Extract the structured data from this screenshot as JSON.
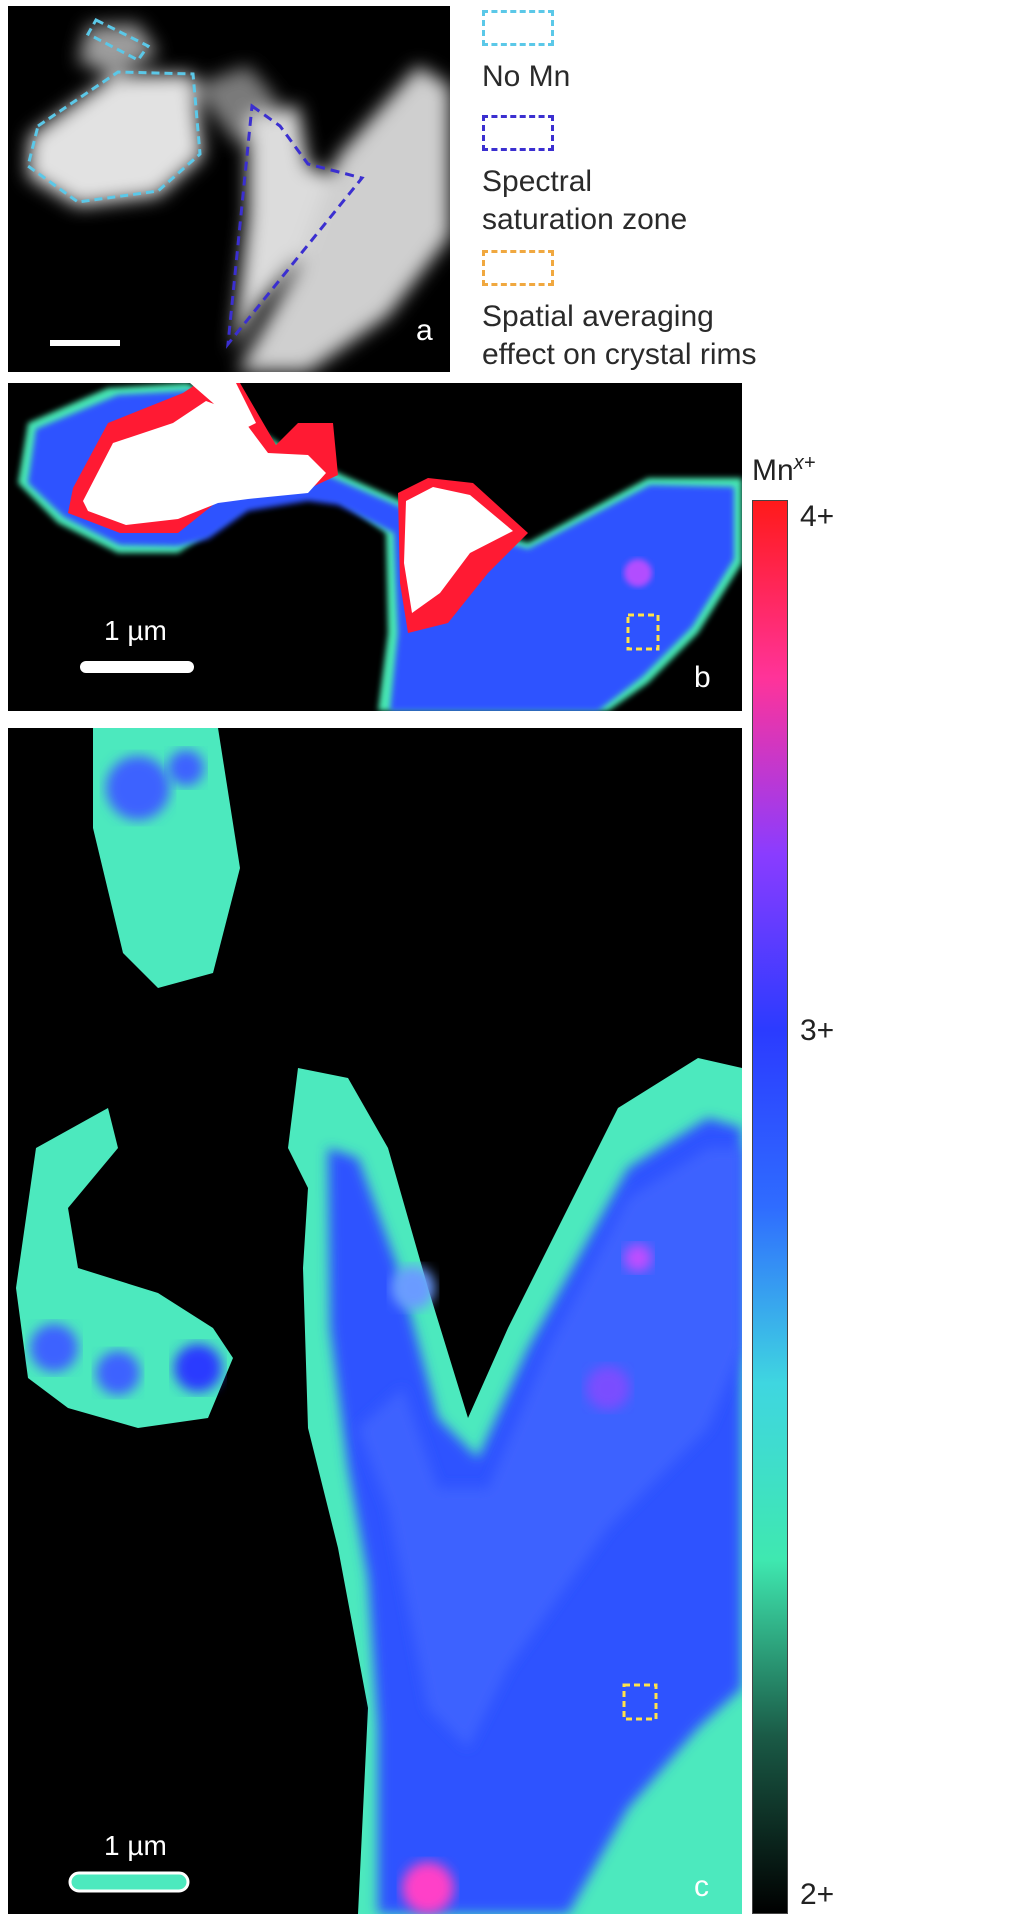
{
  "legend": {
    "items": [
      {
        "text": [
          "No Mn"
        ],
        "color": "#5bc8e8"
      },
      {
        "text": [
          "Spectral",
          "saturation zone"
        ],
        "color": "#3b2fd0"
      },
      {
        "text": [
          "Spatial averaging",
          "effect on crystal rims"
        ],
        "color": "#f0a840"
      }
    ]
  },
  "panels": {
    "a": {
      "letter": "a"
    },
    "b": {
      "letter": "b",
      "scalebar": "1 µm"
    },
    "c": {
      "letter": "c",
      "scalebar": "1 µm"
    }
  },
  "colorbar": {
    "title_base": "Mn",
    "title_sup": "x+",
    "ticks": [
      "4+",
      "3+",
      "2+"
    ],
    "colors": [
      "#ff1a1a",
      "#ff3399",
      "#8a3cff",
      "#2b3bff",
      "#2f6cff",
      "#3fd6e0",
      "#3fe8b0",
      "#1a5a46",
      "#000000"
    ]
  }
}
